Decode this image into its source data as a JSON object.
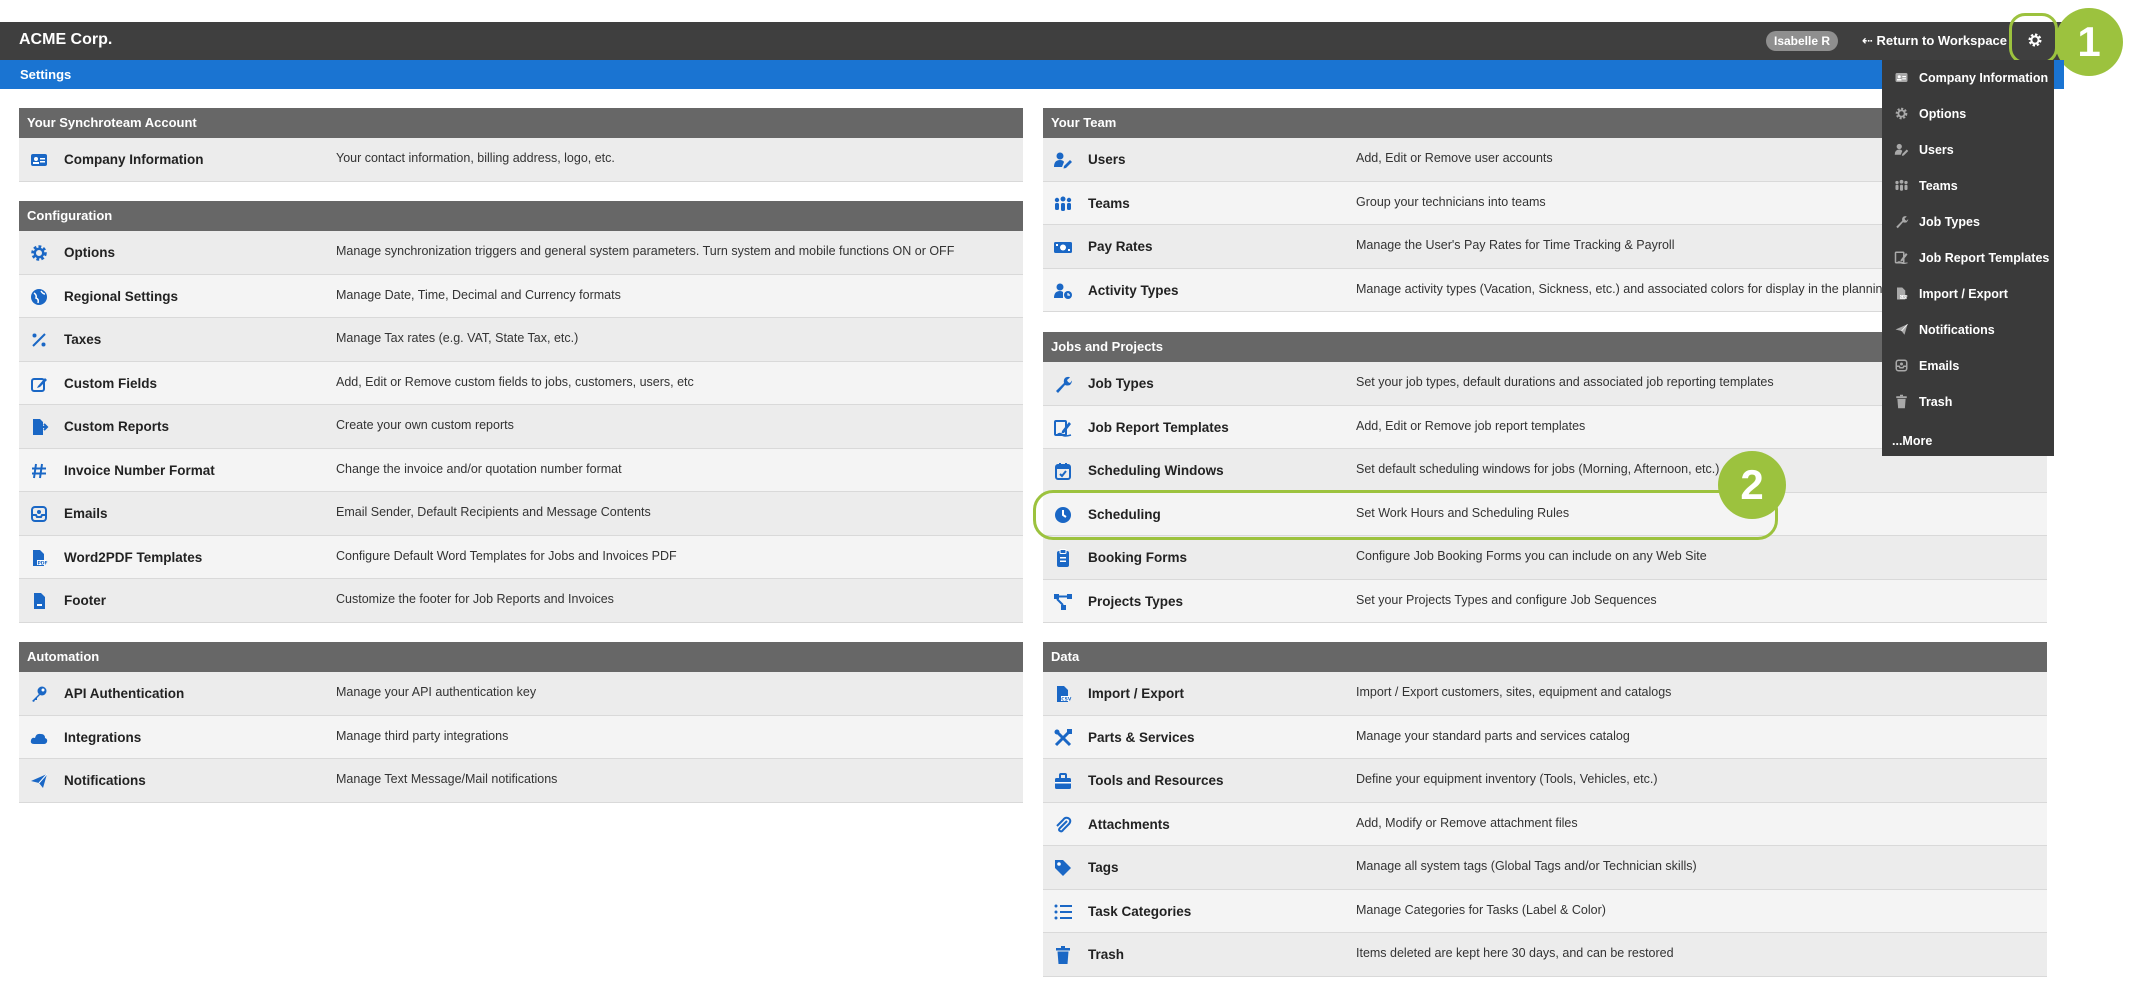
{
  "header": {
    "brand": "ACME Corp.",
    "user": "Isabelle R",
    "return_link": "⇠ Return to Workspace",
    "settings_icon": "gear-icon"
  },
  "subbar": {
    "title": "Settings"
  },
  "callouts": [
    "1",
    "2"
  ],
  "colors": {
    "accent_blue": "#1a74d2",
    "topbar": "#3f3f3f",
    "section_header": "#676767",
    "callout_green": "#9cc23e",
    "icon_blue": "#1a67c5"
  },
  "left_sections": [
    {
      "title": "Your Synchroteam Account",
      "rows": [
        {
          "icon": "id-card-icon",
          "label": "Company Information",
          "desc": "Your contact information, billing address, logo, etc."
        }
      ]
    },
    {
      "title": "Configuration",
      "rows": [
        {
          "icon": "gear-icon",
          "label": "Options",
          "desc": "Manage synchronization triggers and general system parameters. Turn system and mobile functions ON or OFF"
        },
        {
          "icon": "globe-icon",
          "label": "Regional Settings",
          "desc": "Manage Date, Time, Decimal and Currency formats"
        },
        {
          "icon": "percent-icon",
          "label": "Taxes",
          "desc": "Manage Tax rates (e.g. VAT, State Tax, etc.)"
        },
        {
          "icon": "edit-icon",
          "label": "Custom Fields",
          "desc": "Add, Edit or Remove custom fields to jobs, customers, users, etc"
        },
        {
          "icon": "report-export-icon",
          "label": "Custom Reports",
          "desc": "Create your own custom reports"
        },
        {
          "icon": "hash-icon",
          "label": "Invoice Number Format",
          "desc": "Change the invoice and/or quotation number format"
        },
        {
          "icon": "inbox-icon",
          "label": "Emails",
          "desc": "Email Sender, Default Recipients and Message Contents"
        },
        {
          "icon": "pdf-file-icon",
          "label": "Word2PDF Templates",
          "desc": "Configure Default Word Templates for Jobs and Invoices PDF"
        },
        {
          "icon": "footer-file-icon",
          "label": "Footer",
          "desc": "Customize the footer for Job Reports and Invoices"
        }
      ]
    },
    {
      "title": "Automation",
      "rows": [
        {
          "icon": "key-icon",
          "label": "API Authentication",
          "desc": "Manage your API authentication key"
        },
        {
          "icon": "cloud-icon",
          "label": "Integrations",
          "desc": "Manage third party integrations"
        },
        {
          "icon": "paper-plane-icon",
          "label": "Notifications",
          "desc": "Manage Text Message/Mail notifications"
        }
      ]
    }
  ],
  "right_sections": [
    {
      "title": "Your Team",
      "rows": [
        {
          "icon": "user-edit-icon",
          "label": "Users",
          "desc": "Add, Edit or Remove user accounts"
        },
        {
          "icon": "group-icon",
          "label": "Teams",
          "desc": "Group your technicians into teams"
        },
        {
          "icon": "money-bill-icon",
          "label": "Pay Rates",
          "desc": "Manage the User's Pay Rates for Time Tracking & Payroll"
        },
        {
          "icon": "user-clock-icon",
          "label": "Activity Types",
          "desc": "Manage activity types (Vacation, Sickness, etc.) and associated colors for display in the planning"
        }
      ]
    },
    {
      "title": "Jobs and Projects",
      "rows": [
        {
          "icon": "wrench-icon",
          "label": "Job Types",
          "desc": "Set your job types, default durations and associated job reporting templates"
        },
        {
          "icon": "signature-icon",
          "label": "Job Report Templates",
          "desc": "Add, Edit or Remove job report templates"
        },
        {
          "icon": "calendar-check-icon",
          "label": "Scheduling Windows",
          "desc": "Set default scheduling windows for jobs (Morning, Afternoon, etc.)"
        },
        {
          "icon": "clock-icon",
          "label": "Scheduling",
          "desc": "Set Work Hours and Scheduling Rules"
        },
        {
          "icon": "clipboard-icon",
          "label": "Booking Forms",
          "desc": "Configure Job Booking Forms you can include on any Web Site"
        },
        {
          "icon": "project-diagram-icon",
          "label": "Projects Types",
          "desc": "Set your Projects Types and configure Job Sequences"
        }
      ]
    },
    {
      "title": "Data",
      "rows": [
        {
          "icon": "csv-file-icon",
          "label": "Import / Export",
          "desc": "Import / Export customers, sites, equipment and catalogs"
        },
        {
          "icon": "tools-icon",
          "label": "Parts & Services",
          "desc": "Manage your standard parts and services catalog"
        },
        {
          "icon": "toolbox-icon",
          "label": "Tools and Resources",
          "desc": "Define your equipment inventory (Tools, Vehicles, etc.)"
        },
        {
          "icon": "paperclip-icon",
          "label": "Attachments",
          "desc": "Add, Modify or Remove attachment files"
        },
        {
          "icon": "tags-icon",
          "label": "Tags",
          "desc": "Manage all system tags (Global Tags and/or Technician skills)"
        },
        {
          "icon": "list-icon",
          "label": "Task Categories",
          "desc": "Manage Categories for Tasks (Label & Color)"
        },
        {
          "icon": "trash-icon",
          "label": "Trash",
          "desc": "Items deleted are kept here 30 days, and can be restored"
        }
      ]
    }
  ],
  "settings_menu": {
    "items": [
      {
        "icon": "id-card-icon",
        "label": "Company Information"
      },
      {
        "icon": "gear-icon",
        "label": "Options"
      },
      {
        "icon": "user-edit-icon",
        "label": "Users"
      },
      {
        "icon": "group-icon",
        "label": "Teams"
      },
      {
        "icon": "wrench-icon",
        "label": "Job Types"
      },
      {
        "icon": "signature-icon",
        "label": "Job Report Templates"
      },
      {
        "icon": "csv-file-icon",
        "label": "Import / Export"
      },
      {
        "icon": "paper-plane-icon",
        "label": "Notifications"
      },
      {
        "icon": "inbox-icon",
        "label": "Emails"
      },
      {
        "icon": "trash-icon",
        "label": "Trash"
      }
    ],
    "more": "...More"
  }
}
